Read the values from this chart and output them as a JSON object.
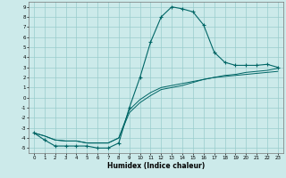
{
  "title": "",
  "xlabel": "Humidex (Indice chaleur)",
  "xlim": [
    -0.5,
    23.5
  ],
  "ylim": [
    -5.5,
    9.5
  ],
  "xticks": [
    0,
    1,
    2,
    3,
    4,
    5,
    6,
    7,
    8,
    9,
    10,
    11,
    12,
    13,
    14,
    15,
    16,
    17,
    18,
    19,
    20,
    21,
    22,
    23
  ],
  "yticks": [
    -5,
    -4,
    -3,
    -2,
    -1,
    0,
    1,
    2,
    3,
    4,
    5,
    6,
    7,
    8,
    9
  ],
  "background_color": "#cceaea",
  "grid_color": "#99cccc",
  "line_color": "#006666",
  "curve1_x": [
    0,
    1,
    2,
    3,
    4,
    5,
    6,
    7,
    8,
    9,
    10,
    11,
    12,
    13,
    14,
    15,
    16,
    17,
    18,
    19,
    20,
    21,
    22,
    23
  ],
  "curve1_y": [
    -3.5,
    -4.2,
    -4.8,
    -4.8,
    -4.8,
    -4.8,
    -5,
    -5,
    -4.5,
    -1,
    2,
    5.5,
    8,
    9,
    8.8,
    8.5,
    7.2,
    4.5,
    3.5,
    3.2,
    3.2,
    3.2,
    3.3,
    3.0
  ],
  "curve2_x": [
    0,
    1,
    2,
    3,
    4,
    5,
    6,
    7,
    8,
    9,
    10,
    11,
    12,
    13,
    14,
    15,
    16,
    17,
    18,
    19,
    20,
    21,
    22,
    23
  ],
  "curve2_y": [
    -3.5,
    -3.8,
    -4.2,
    -4.3,
    -4.3,
    -4.5,
    -4.5,
    -4.5,
    -4.0,
    -1.5,
    -0.5,
    0.2,
    0.8,
    1.0,
    1.2,
    1.5,
    1.8,
    2.0,
    2.2,
    2.3,
    2.5,
    2.6,
    2.7,
    2.9
  ],
  "curve3_x": [
    0,
    1,
    2,
    3,
    4,
    5,
    6,
    7,
    8,
    9,
    10,
    11,
    12,
    13,
    14,
    15,
    16,
    17,
    18,
    19,
    20,
    21,
    22,
    23
  ],
  "curve3_y": [
    -3.5,
    -3.8,
    -4.2,
    -4.3,
    -4.3,
    -4.5,
    -4.5,
    -4.5,
    -4.0,
    -1.2,
    -0.2,
    0.5,
    1.0,
    1.2,
    1.4,
    1.6,
    1.8,
    2.0,
    2.1,
    2.2,
    2.3,
    2.4,
    2.5,
    2.6
  ]
}
